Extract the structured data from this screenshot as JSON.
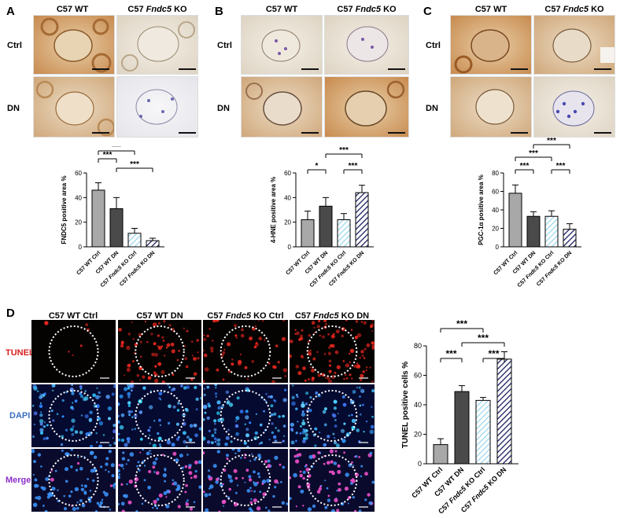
{
  "panels": {
    "A": {
      "letter": "A",
      "col_headers": [
        "C57 WT",
        "C57 Fndc5 KO"
      ],
      "row_labels": [
        "Ctrl",
        "DN"
      ],
      "chart": {
        "type": "bar",
        "ylabel": "FNDC5 positive area %",
        "ylim": [
          0,
          60
        ],
        "yticks": [
          "0",
          "20",
          "40",
          "60"
        ],
        "categories": [
          "C57 WT Ctrl",
          "C57 WT DN",
          "C57 Fndc5 KO Ctrl",
          "C57 Fndc5 KO DN"
        ],
        "values": [
          46,
          31,
          11,
          5
        ],
        "errors": [
          6,
          9,
          4,
          2
        ],
        "significance": [
          {
            "from": 0,
            "to": 2,
            "label": "***"
          },
          {
            "from": 0,
            "to": 1,
            "label": "***"
          },
          {
            "from": 1,
            "to": 3,
            "label": "***"
          }
        ]
      }
    },
    "B": {
      "letter": "B",
      "col_headers": [
        "C57 WT",
        "C57 Fndc5 KO"
      ],
      "row_labels": [
        "Ctrl",
        "DN"
      ],
      "chart": {
        "type": "bar",
        "ylabel": "4-HNE positive area %",
        "ylim": [
          0,
          60
        ],
        "yticks": [
          "0",
          "20",
          "40",
          "60"
        ],
        "categories": [
          "C57 WT Ctrl",
          "C57 WT DN",
          "C57 Fndc5 KO Ctrl",
          "C57 Fndc5 KO DN"
        ],
        "values": [
          22,
          33,
          22,
          44
        ],
        "errors": [
          7,
          7,
          5,
          6
        ],
        "significance": [
          {
            "from": 1,
            "to": 3,
            "label": "***"
          },
          {
            "from": 0,
            "to": 1,
            "label": "*"
          },
          {
            "from": 2,
            "to": 3,
            "label": "***"
          }
        ]
      }
    },
    "C": {
      "letter": "C",
      "col_headers": [
        "C57 WT",
        "C57 Fndc5 KO"
      ],
      "row_labels": [
        "Ctrl",
        "DN"
      ],
      "chart": {
        "type": "bar",
        "ylabel": "PGC-1α positive area %",
        "ylim": [
          0,
          80
        ],
        "yticks": [
          "0",
          "20",
          "40",
          "60",
          "80"
        ],
        "categories": [
          "C57 WT Ctrl",
          "C57 WT DN",
          "C57 Fndc5 KO Ctrl",
          "C57 Fndc5 KO DN"
        ],
        "values": [
          58,
          33,
          33,
          19
        ],
        "errors": [
          9,
          5,
          6,
          6
        ],
        "significance": [
          {
            "from": 1,
            "to": 3,
            "label": "***"
          },
          {
            "from": 0,
            "to": 2,
            "label": "***"
          },
          {
            "from": 0,
            "to": 1,
            "label": "***"
          },
          {
            "from": 2,
            "to": 3,
            "label": "***"
          }
        ]
      }
    },
    "D": {
      "letter": "D",
      "col_headers": [
        "C57 WT Ctrl",
        "C57 WT DN",
        "C57 Fndc5 KO Ctrl",
        "C57 Fndc5 KO DN"
      ],
      "row_labels": [
        "TUNEL",
        "DAPI",
        "Merge"
      ],
      "row_label_colors": [
        "#d62020",
        "#3a6fc4",
        "#8b2fc9"
      ],
      "chart": {
        "type": "bar",
        "ylabel": "TUNEL positive cells %",
        "ylim": [
          0,
          80
        ],
        "yticks": [
          "0",
          "20",
          "40",
          "60",
          "80"
        ],
        "categories": [
          "C57 WT Ctrl",
          "C57 WT DN",
          "C57 Fndc5 KO Ctrl",
          "C57 Fndc5 KO DN"
        ],
        "values": [
          13,
          49,
          43,
          71
        ],
        "errors": [
          4,
          4,
          2,
          5
        ],
        "significance": [
          {
            "from": 0,
            "to": 2,
            "label": "***"
          },
          {
            "from": 1,
            "to": 3,
            "label": "***"
          },
          {
            "from": 0,
            "to": 1,
            "label": "***"
          },
          {
            "from": 2,
            "to": 3,
            "label": "***"
          }
        ]
      }
    }
  },
  "bar_styles": [
    {
      "fill": "#a8a8a8",
      "hatch": "none"
    },
    {
      "fill": "#4a4a4a",
      "hatch": "none"
    },
    {
      "fill": "#bfe3f0",
      "hatch": "light"
    },
    {
      "fill": "#1c1f5e",
      "hatch": "dark"
    }
  ]
}
